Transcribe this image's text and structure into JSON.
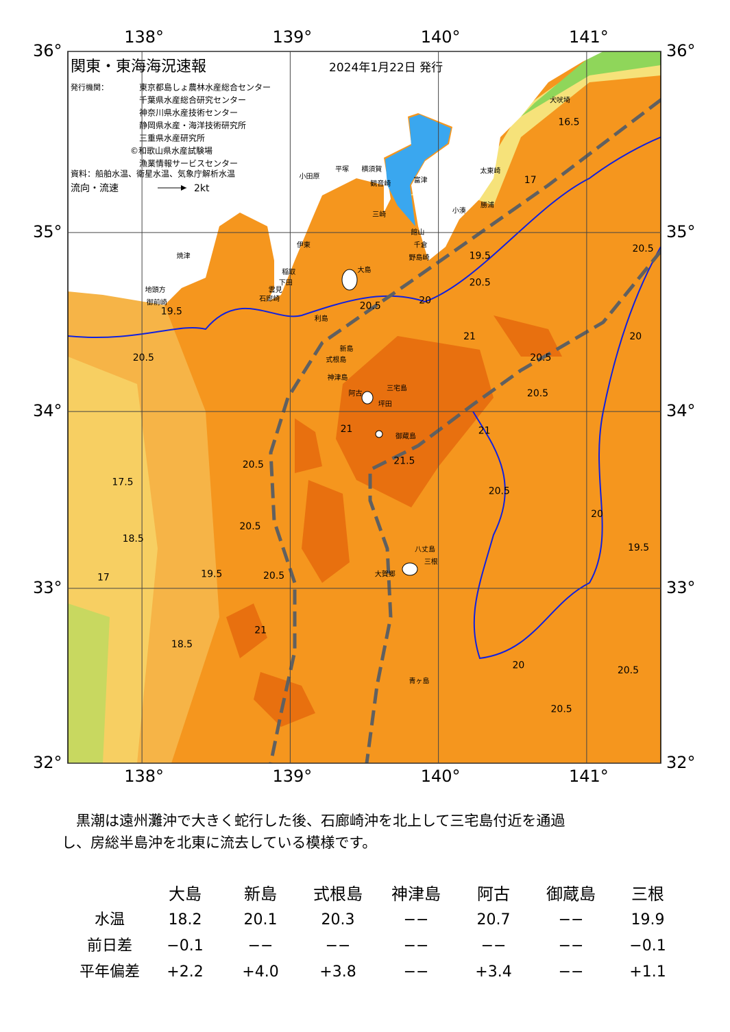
{
  "header": {
    "title": "関東・東海海況速報",
    "date": "2024年1月22日 発行",
    "issuer_label": "発行機関：",
    "issuers": [
      "東京都島しょ農林水産総合センター",
      "千葉県水産総合研究センター",
      "神奈川県水産技術センター",
      "静岡県水産・海洋技術研究所",
      "三重県水産研究所",
      "©和歌山県水産試験場",
      "漁業情報サービスセンター"
    ],
    "source": "資料：船舶水温、衛星水温、気象庁解析水温",
    "flow_label": "流向・流速",
    "flow_scale": "2kt"
  },
  "map": {
    "xlim": [
      137.5,
      141.5
    ],
    "ylim": [
      32,
      36
    ],
    "xticks": [
      {
        "value": 138,
        "label": "138°"
      },
      {
        "value": 139,
        "label": "139°"
      },
      {
        "value": 140,
        "label": "140°"
      },
      {
        "value": 141,
        "label": "141°"
      }
    ],
    "yticks": [
      {
        "value": 32,
        "label": "32°"
      },
      {
        "value": 33,
        "label": "33°"
      },
      {
        "value": 34,
        "label": "34°"
      },
      {
        "value": 35,
        "label": "35°"
      },
      {
        "value": 36,
        "label": "36°"
      }
    ],
    "grid": true,
    "places": [
      {
        "label": "大島",
        "lon": 139.5,
        "lat": 34.79
      },
      {
        "label": "利島",
        "lon": 139.21,
        "lat": 34.52
      },
      {
        "label": "新島",
        "lon": 139.38,
        "lat": 34.35
      },
      {
        "label": "式根島",
        "lon": 139.31,
        "lat": 34.29
      },
      {
        "label": "神津島",
        "lon": 139.32,
        "lat": 34.19
      },
      {
        "label": "三宅島",
        "lon": 139.72,
        "lat": 34.13
      },
      {
        "label": "阿古",
        "lon": 139.44,
        "lat": 34.1
      },
      {
        "label": "坪田",
        "lon": 139.64,
        "lat": 34.04
      },
      {
        "label": "御蔵島",
        "lon": 139.78,
        "lat": 33.86
      },
      {
        "label": "八丈島",
        "lon": 139.91,
        "lat": 33.22
      },
      {
        "label": "三根",
        "lon": 139.95,
        "lat": 33.15
      },
      {
        "label": "大賀郷",
        "lon": 139.64,
        "lat": 33.08
      },
      {
        "label": "青ヶ島",
        "lon": 139.87,
        "lat": 32.47
      },
      {
        "label": "犬吠埼",
        "lon": 140.82,
        "lat": 35.73
      },
      {
        "label": "太東崎",
        "lon": 140.35,
        "lat": 35.34
      },
      {
        "label": "勝浦",
        "lon": 140.33,
        "lat": 35.15
      },
      {
        "label": "小湊",
        "lon": 140.14,
        "lat": 35.12
      },
      {
        "label": "富津",
        "lon": 139.88,
        "lat": 35.29
      },
      {
        "label": "館山",
        "lon": 139.86,
        "lat": 35.0
      },
      {
        "label": "千倉",
        "lon": 139.88,
        "lat": 34.93
      },
      {
        "label": "野島崎",
        "lon": 139.87,
        "lat": 34.86
      },
      {
        "label": "横須賀",
        "lon": 139.55,
        "lat": 35.35
      },
      {
        "label": "観音崎",
        "lon": 139.61,
        "lat": 35.27
      },
      {
        "label": "三崎",
        "lon": 139.6,
        "lat": 35.1
      },
      {
        "label": "平塚",
        "lon": 139.35,
        "lat": 35.35
      },
      {
        "label": "小田原",
        "lon": 139.13,
        "lat": 35.31
      },
      {
        "label": "伊東",
        "lon": 139.09,
        "lat": 34.93
      },
      {
        "label": "稲取",
        "lon": 138.99,
        "lat": 34.78
      },
      {
        "label": "下田",
        "lon": 138.97,
        "lat": 34.72
      },
      {
        "label": "雲見",
        "lon": 138.9,
        "lat": 34.68
      },
      {
        "label": "石廊崎",
        "lon": 138.86,
        "lat": 34.63
      },
      {
        "label": "焼津",
        "lon": 138.28,
        "lat": 34.87
      },
      {
        "label": "地頭方",
        "lon": 138.09,
        "lat": 34.68
      },
      {
        "label": "御前崎",
        "lon": 138.1,
        "lat": 34.61
      }
    ],
    "isotherm_labels": [
      {
        "label": "16.5",
        "lon": 140.88,
        "lat": 35.61
      },
      {
        "label": "17",
        "lon": 140.62,
        "lat": 35.29
      },
      {
        "label": "19.5",
        "lon": 140.28,
        "lat": 34.87
      },
      {
        "label": "20.5",
        "lon": 140.28,
        "lat": 34.72
      },
      {
        "label": "20.5",
        "lon": 139.54,
        "lat": 34.59
      },
      {
        "label": "20",
        "lon": 139.91,
        "lat": 34.62
      },
      {
        "label": "19.5",
        "lon": 138.2,
        "lat": 34.56
      },
      {
        "label": "20.5",
        "lon": 138.01,
        "lat": 34.3
      },
      {
        "label": "21",
        "lon": 140.21,
        "lat": 34.42
      },
      {
        "label": "20.5",
        "lon": 140.69,
        "lat": 34.3
      },
      {
        "label": "20.5",
        "lon": 140.67,
        "lat": 34.1
      },
      {
        "label": "21",
        "lon": 140.31,
        "lat": 33.89
      },
      {
        "label": "20.5",
        "lon": 138.75,
        "lat": 33.7
      },
      {
        "label": "21",
        "lon": 139.38,
        "lat": 33.9
      },
      {
        "label": "21.5",
        "lon": 139.77,
        "lat": 33.72
      },
      {
        "label": "20.5",
        "lon": 140.41,
        "lat": 33.55
      },
      {
        "label": "20.5",
        "lon": 138.73,
        "lat": 33.35
      },
      {
        "label": "20.5",
        "lon": 138.89,
        "lat": 33.07
      },
      {
        "label": "19.5",
        "lon": 138.47,
        "lat": 33.08
      },
      {
        "label": "18.5",
        "lon": 137.94,
        "lat": 33.28
      },
      {
        "label": "17.5",
        "lon": 137.87,
        "lat": 33.6
      },
      {
        "label": "17",
        "lon": 137.74,
        "lat": 33.06
      },
      {
        "label": "18.5",
        "lon": 138.27,
        "lat": 32.68
      },
      {
        "label": "20",
        "lon": 140.54,
        "lat": 32.56
      },
      {
        "label": "20.5",
        "lon": 141.28,
        "lat": 32.53
      },
      {
        "label": "20.5",
        "lon": 140.83,
        "lat": 32.31
      },
      {
        "label": "20",
        "lon": 141.07,
        "lat": 33.42
      },
      {
        "label": "19.5",
        "lon": 141.35,
        "lat": 33.23
      },
      {
        "label": "20.5",
        "lon": 141.38,
        "lat": 34.91
      },
      {
        "label": "20",
        "lon": 141.33,
        "lat": 34.42
      },
      {
        "label": "21",
        "lon": 138.8,
        "lat": 32.76
      }
    ]
  },
  "paragraph": {
    "lines": [
      "　黒潮は遠州灘沖で大きく蛇行した後、石廊崎沖を北上して三宅島付近を通過",
      "し、房総半島沖を北東に流去している模様です。"
    ]
  },
  "table": {
    "header": [
      "大島",
      "新島",
      "式根島",
      "神津島",
      "阿古",
      "御蔵島",
      "三根"
    ],
    "rows": [
      [
        "水温",
        "18.2",
        "20.1",
        "20.3",
        "−−",
        "20.7",
        "−−",
        "19.9"
      ],
      [
        "前日差",
        "−0.1",
        "−−",
        "−−",
        "−−",
        "−−",
        "−−",
        "−0.1"
      ],
      [
        "平年偏差",
        "+2.2",
        "+4.0",
        "+3.8",
        "−−",
        "+3.4",
        "−−",
        "+1.1"
      ]
    ]
  }
}
